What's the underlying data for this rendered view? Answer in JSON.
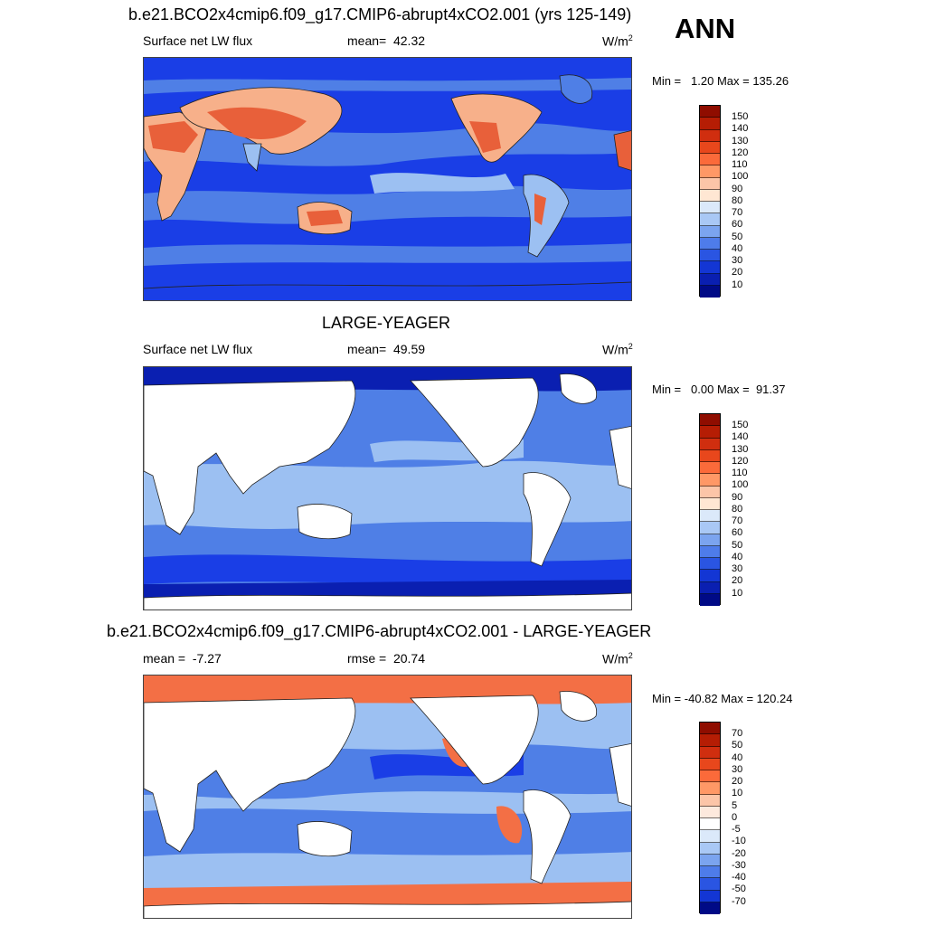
{
  "season": "ANN",
  "colors": {
    "ocean_deep": "#1a3ee6",
    "ocean_mid": "#4f7fe6",
    "ocean_light": "#9cc0f2",
    "land_hot": "#e8603a",
    "land_warm": "#f7b08a",
    "land_white": "#ffffff",
    "diff_pos": "#f36f45"
  },
  "colormap_abs": [
    "#f6e6d8",
    "#ff9866",
    "#fb6a3a",
    "#e8471c",
    "#d02e0f",
    "#b51d04",
    "#8f0d00",
    "#ffe7d3",
    "#dbe9fa",
    "#a9c8f5",
    "#7ba4ef",
    "#4e7cea",
    "#2a55e2",
    "#1336d4",
    "#0a1fb1",
    "#000a86"
  ],
  "colormap_diff": [
    "#8f0d00",
    "#b51d04",
    "#d02e0f",
    "#e8471c",
    "#fb6a3a",
    "#ff9866",
    "#fcc5a8",
    "#fde9dd",
    "#ffffff",
    "#dbe9fa",
    "#a9c8f5",
    "#7ba4ef",
    "#4e7cea",
    "#2a55e2",
    "#1336d4",
    "#000a86"
  ],
  "panels": [
    {
      "title": "b.e21.BCO2x4cmip6.f09_g17.CMIP6-abrupt4xCO2.001 (yrs 125-149)",
      "variable": "Surface net LW flux",
      "stat_label": "mean=",
      "stat_value": "42.32",
      "units": "W/m",
      "units_sup": "2",
      "min_label": "Min =",
      "min_value": "1.20",
      "max_label": "Max =",
      "max_value": "135.26",
      "levels": [
        "150",
        "140",
        "130",
        "120",
        "110",
        "100",
        "90",
        "80",
        "70",
        "60",
        "50",
        "40",
        "30",
        "20",
        "10"
      ]
    },
    {
      "title": "LARGE-YEAGER",
      "variable": "Surface net LW flux",
      "stat_label": "mean=",
      "stat_value": "49.59",
      "units": "W/m",
      "units_sup": "2",
      "min_label": "Min =",
      "min_value": "0.00",
      "max_label": "Max =",
      "max_value": "91.37",
      "levels": [
        "150",
        "140",
        "130",
        "120",
        "110",
        "100",
        "90",
        "80",
        "70",
        "60",
        "50",
        "40",
        "30",
        "20",
        "10"
      ]
    },
    {
      "title": "b.e21.BCO2x4cmip6.f09_g17.CMIP6-abrupt4xCO2.001 - LARGE-YEAGER",
      "variable": "mean =",
      "variable_value": "-7.27",
      "stat_label": "rmse =",
      "stat_value": "20.74",
      "units": "W/m",
      "units_sup": "2",
      "min_label": "Min =",
      "min_value": "-40.82",
      "max_label": "Max =",
      "max_value": "120.24",
      "levels": [
        "70",
        "50",
        "40",
        "30",
        "20",
        "10",
        "5",
        "0",
        "-5",
        "-10",
        "-20",
        "-30",
        "-40",
        "-50",
        "-70"
      ]
    }
  ]
}
